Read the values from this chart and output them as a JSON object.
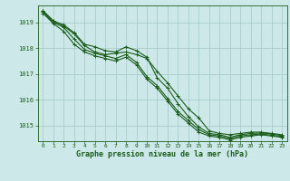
{
  "background_color": "#cde8e8",
  "grid_color": "#a8cccc",
  "line_color": "#1a5c1a",
  "xlabel": "Graphe pression niveau de la mer (hPa)",
  "xlabel_fontsize": 6.0,
  "xticks": [
    0,
    1,
    2,
    3,
    4,
    5,
    6,
    7,
    8,
    9,
    10,
    11,
    12,
    13,
    14,
    15,
    16,
    17,
    18,
    19,
    20,
    21,
    22,
    23
  ],
  "yticks": [
    1015,
    1016,
    1017,
    1018,
    1019
  ],
  "ylim": [
    1014.4,
    1019.65
  ],
  "xlim": [
    -0.5,
    23.5
  ],
  "series": [
    [
      1019.45,
      1019.05,
      1018.85,
      1018.55,
      1018.1,
      1017.85,
      1017.75,
      1017.8,
      1017.85,
      1017.75,
      1017.6,
      1017.1,
      1016.65,
      1016.15,
      1015.65,
      1015.3,
      1014.8,
      1014.7,
      1014.65,
      1014.7,
      1014.75,
      1014.75,
      1014.7,
      1014.65
    ],
    [
      1019.45,
      1019.05,
      1018.9,
      1018.6,
      1018.15,
      1018.05,
      1017.9,
      1017.85,
      1018.05,
      1017.9,
      1017.65,
      1016.85,
      1016.45,
      1015.85,
      1015.35,
      1014.95,
      1014.7,
      1014.65,
      1014.55,
      1014.65,
      1014.7,
      1014.72,
      1014.68,
      1014.62
    ],
    [
      1019.4,
      1019.0,
      1018.8,
      1018.35,
      1017.95,
      1017.8,
      1017.7,
      1017.6,
      1017.75,
      1017.45,
      1016.9,
      1016.55,
      1016.05,
      1015.55,
      1015.2,
      1014.85,
      1014.65,
      1014.6,
      1014.5,
      1014.6,
      1014.65,
      1014.68,
      1014.63,
      1014.58
    ],
    [
      1019.35,
      1018.95,
      1018.65,
      1018.15,
      1017.85,
      1017.7,
      1017.6,
      1017.5,
      1017.65,
      1017.35,
      1016.8,
      1016.45,
      1015.95,
      1015.45,
      1015.1,
      1014.75,
      1014.6,
      1014.55,
      1014.45,
      1014.55,
      1014.6,
      1014.65,
      1014.6,
      1014.55
    ]
  ]
}
